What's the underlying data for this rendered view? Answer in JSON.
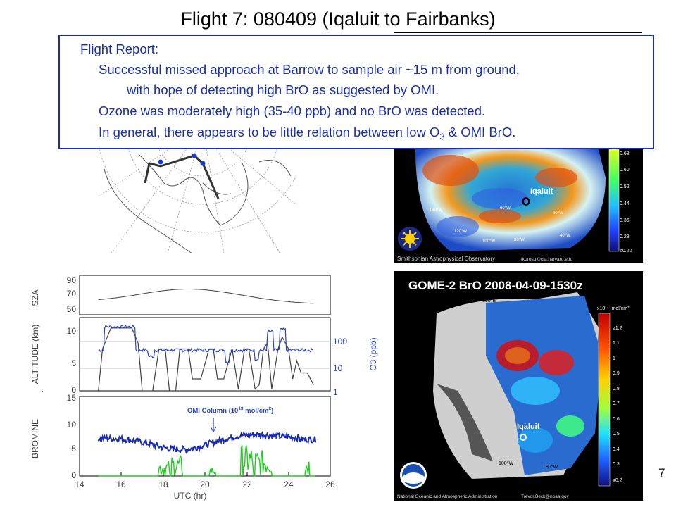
{
  "title": "Flight 7: 080409 (Iqaluit to Fairbanks)",
  "report": {
    "heading": "Flight Report:",
    "line1": "Successful missed approach at Barrow to sample air ~15 m from ground,",
    "line2": "with hope of detecting high BrO as suggested by OMI.",
    "line3": "Ozone was moderately high (35-40 ppb) and no BrO was detected.",
    "line4_pre": "In general, there appears to be little relation between low O",
    "line4_sub": "3",
    "line4_post": " & OMI BrO."
  },
  "omi_map": {
    "location_label": "Iqaluit",
    "colorbar_ticks": [
      "0.68",
      "0.60",
      "0.52",
      "0.44",
      "0.36",
      "0.28",
      "≤0.20"
    ],
    "lon_labels": [
      "140°W",
      "120°W",
      "100°W",
      "80°W",
      "60°W",
      "40°W",
      "60°W"
    ],
    "credit_left": "Smithsonian Astrophysical Observatory",
    "credit_right": "tkurosu@cfa.harvard.edu"
  },
  "gome_map": {
    "title": "GOME-2 BrO 2008-04-09-1530z",
    "location_label": "Iqaluit",
    "colorbar_unit": "x10¹⁴ [mol/cm²]",
    "colorbar_ticks": [
      "≥1.2",
      "1.1",
      "1",
      "0.9",
      "0.8",
      "0.7",
      "0.6",
      "0.5",
      "0.4",
      "0.3",
      "≤0.2"
    ],
    "lon_labels": [
      "100°E",
      "80°E",
      "100°W",
      "80°W"
    ],
    "credit_left": "National Oceanic and Atmospheric Administration",
    "credit_right": "Trevor.Beck@noaa.gov"
  },
  "flight_plot": {
    "sza_label": "SZA",
    "sza_ticks": [
      "90",
      "70",
      "50"
    ],
    "altitude_label": "ALTITUDE (km)",
    "altitude_ticks": [
      "10",
      "5",
      "0"
    ],
    "o3_label": "O3 (ppb)",
    "o3_ticks": [
      "100",
      "10",
      "1"
    ],
    "bromine_label": "BROMINE",
    "bromine_ticks": [
      "15",
      "10",
      "5",
      "0"
    ],
    "omi_annotation_pre": "OMI Column (10",
    "omi_annotation_sup": "13",
    "omi_annotation_mid": " mol/cm",
    "omi_annotation_sup2": "2",
    "omi_annotation_post": ")",
    "x_ticks": [
      "14",
      "16",
      "18",
      "20",
      "22",
      "24",
      "26"
    ],
    "xlabel": "UTC (hr)",
    "tick_mark": "`",
    "colors": {
      "altitude": "#404040",
      "ozone": "#2a44c8",
      "bromine": "#1a2bb0",
      "omi": "#22cc22"
    }
  },
  "page_number": "7"
}
